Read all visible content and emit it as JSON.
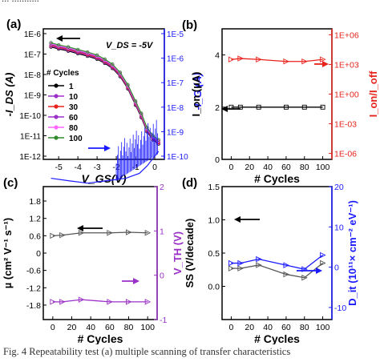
{
  "header_fragment": "... ...........",
  "caption": "Fig. 4 Repeatability test (a) multiple scanning of transfer characteristics",
  "colors": {
    "black": "#000000",
    "blue": "#1a1aff",
    "red": "#e8231c",
    "purple": "#9b30c8",
    "grid": "#999999"
  },
  "chart_data": [
    {
      "panel": "(a)",
      "type": "line",
      "annotation": "V_DS = -5V",
      "xlabel": "V_GS(V)",
      "ylabel_left": "-I_DS (A)",
      "ylabel_right": "-I_G (A)",
      "x_ticks": [
        "-5",
        "-4",
        "-3",
        "-2",
        "-1",
        "0"
      ],
      "xlim": [
        -5.8,
        0.5
      ],
      "y_left_ticks": [
        "1E-12",
        "1E-11",
        "1E-10",
        "1E-9",
        "1E-8",
        "1E-7",
        "1E-6"
      ],
      "y_right_ticks": [
        "1E-10",
        "1E-9",
        "1E-8",
        "1E-7",
        "1E-6",
        "1E-5"
      ],
      "legend_title": "# Cycles",
      "legend_position": "left",
      "series": [
        {
          "name": "1",
          "color": "#000000",
          "marker": "circle"
        },
        {
          "name": "10",
          "color": "#9b30c8",
          "marker": "circle"
        },
        {
          "name": "30",
          "color": "#e8231c",
          "marker": "triangle"
        },
        {
          "name": "60",
          "color": "#9b30c8",
          "marker": "diamond"
        },
        {
          "name": "80",
          "color": "#ff66ff",
          "marker": "circle"
        },
        {
          "name": "100",
          "color": "#2e8b2e",
          "marker": "circle"
        }
      ],
      "transfer_curve": {
        "x": [
          -5.4,
          -5.0,
          -4.5,
          -4.0,
          -3.5,
          -3.0,
          -2.6,
          -2.2,
          -1.8,
          -1.4,
          -1.0,
          -0.7,
          -0.4,
          -0.1,
          0.2
        ],
        "log10_ids": [
          -6.55,
          -6.65,
          -6.75,
          -6.88,
          -7.0,
          -7.15,
          -7.35,
          -7.6,
          -8.0,
          -8.6,
          -9.4,
          -10.0,
          -10.7,
          -11.1,
          -11.3
        ]
      },
      "gate_current": {
        "x": [
          -5.4,
          -4.5,
          -3.5,
          -2.5,
          -1.5,
          -0.8,
          -0.4,
          -0.1,
          0.2
        ],
        "log10_ig": [
          -10.9,
          -11.0,
          -11.1,
          -11.0,
          -10.9,
          -10.7,
          -10.4,
          -10.1,
          -9.8
        ]
      }
    },
    {
      "panel": "(b)",
      "type": "line",
      "xlabel": "# Cycles",
      "ylabel_left": "I_on (µA)",
      "ylabel_right": "I_on/I_off",
      "x_ticks": [
        "0",
        "20",
        "40",
        "60",
        "80",
        "100"
      ],
      "xlim": [
        -10,
        110
      ],
      "y_left_ticks": [
        "0",
        "2",
        "4"
      ],
      "ylim_left": [
        0,
        5
      ],
      "y_right_ticks": [
        "1E-06",
        "1E-03",
        "1E+00",
        "1E+03",
        "1E+06"
      ],
      "series": [
        {
          "name": "I_on",
          "axis": "left",
          "color": "#000000",
          "x": [
            0,
            10,
            30,
            60,
            80,
            100
          ],
          "y": [
            2.0,
            2.0,
            2.0,
            2.0,
            2.0,
            2.0
          ]
        },
        {
          "name": "I_on/I_off",
          "axis": "right",
          "color": "#e8231c",
          "x": [
            0,
            10,
            30,
            60,
            80,
            100
          ],
          "log10_y": [
            3.5,
            3.6,
            3.5,
            3.3,
            3.3,
            3.5
          ]
        }
      ]
    },
    {
      "panel": "(c)",
      "type": "line",
      "xlabel": "# Cycles",
      "ylabel_left": "µ (cm² V⁻¹ s⁻¹)",
      "ylabel_right": "V_TH (V)",
      "x_ticks": [
        "0",
        "20",
        "40",
        "60",
        "80",
        "100"
      ],
      "xlim": [
        -10,
        110
      ],
      "y_left_ticks": [
        "-1.8",
        "-1.2",
        "-0.6",
        "0",
        "0.6",
        "1.2",
        "1.8"
      ],
      "ylim_left": [
        -2.3,
        2.3
      ],
      "y_right_ticks": [
        "-1",
        "0",
        "1",
        "2"
      ],
      "ylim_right": [
        -1,
        2
      ],
      "series": [
        {
          "name": "µ",
          "axis": "left",
          "color": "#555555",
          "x": [
            0,
            10,
            30,
            60,
            80,
            100
          ],
          "y": [
            0.6,
            0.62,
            0.7,
            0.7,
            0.72,
            0.7
          ]
        },
        {
          "name": "V_TH",
          "axis": "right",
          "color": "#9b30c8",
          "x": [
            0,
            10,
            30,
            60,
            80,
            100
          ],
          "y": [
            -0.6,
            -0.6,
            -0.55,
            -0.6,
            -0.6,
            -0.6
          ]
        }
      ]
    },
    {
      "panel": "(d)",
      "type": "line",
      "xlabel": "# Cycles",
      "ylabel_left": "SS (V/decade)",
      "ylabel_right": "D_it (10¹¹× cm⁻² eV⁻¹)",
      "x_ticks": [
        "0",
        "20",
        "40",
        "60",
        "80",
        "100"
      ],
      "xlim": [
        -10,
        110
      ],
      "y_left_ticks": [
        "0.0",
        "0.5",
        "1.0",
        "1.5"
      ],
      "ylim_left": [
        -0.5,
        1.5
      ],
      "y_right_ticks": [
        "-10",
        "0",
        "10",
        "20"
      ],
      "ylim_right": [
        -13,
        20
      ],
      "series": [
        {
          "name": "SS",
          "axis": "left",
          "color": "#555555",
          "x": [
            0,
            10,
            30,
            60,
            80,
            100
          ],
          "y": [
            0.27,
            0.27,
            0.32,
            0.18,
            0.13,
            0.35
          ]
        },
        {
          "name": "D_it",
          "axis": "right",
          "color": "#1a1aff",
          "x": [
            0,
            10,
            30,
            60,
            80,
            100
          ],
          "y": [
            1.0,
            1.0,
            2.0,
            0.5,
            -0.5,
            3.0
          ]
        }
      ]
    }
  ]
}
